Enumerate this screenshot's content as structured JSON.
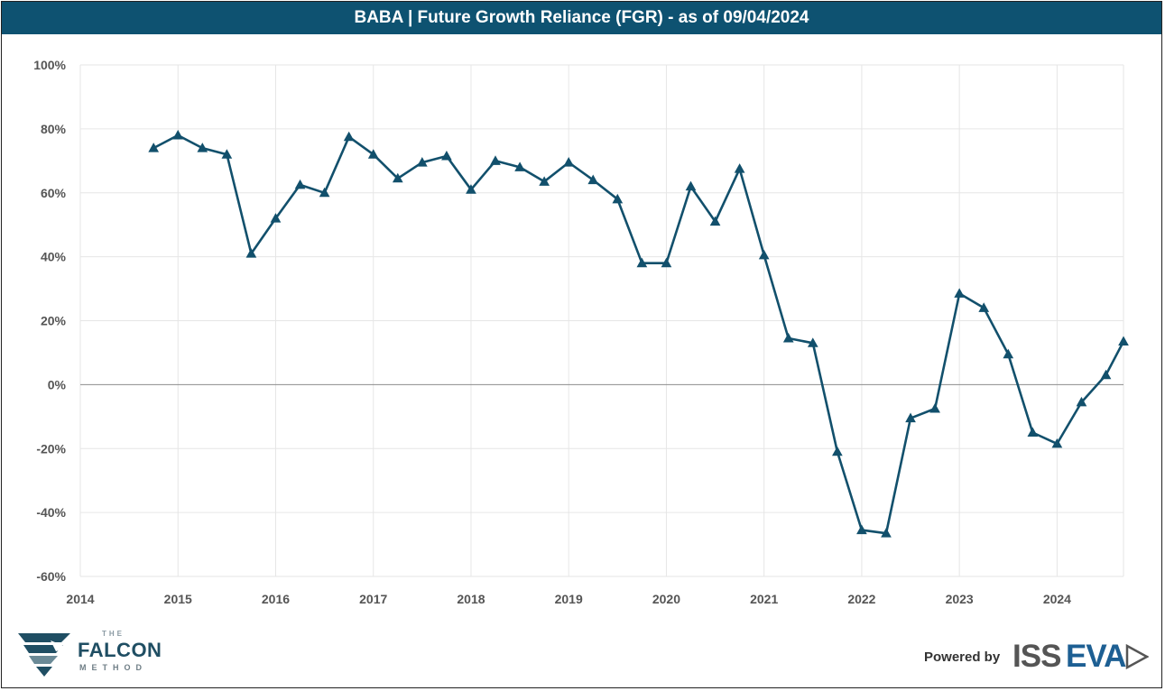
{
  "title": "BABA | Future Growth Reliance (FGR) - as of 09/04/2024",
  "chart_data": {
    "type": "line",
    "title": "BABA | Future Growth Reliance (FGR) - as of 09/04/2024",
    "xlabel": "",
    "ylabel": "",
    "xlim": [
      2014,
      2024.68
    ],
    "ylim": [
      -60,
      100
    ],
    "y_ticks": [
      100,
      80,
      60,
      40,
      20,
      0,
      -20,
      -40,
      -60
    ],
    "y_tick_labels": [
      "100%",
      "80%",
      "60%",
      "40%",
      "20%",
      "0%",
      "-20%",
      "-40%",
      "-60%"
    ],
    "x_ticks": [
      2014,
      2015,
      2016,
      2017,
      2018,
      2019,
      2020,
      2021,
      2022,
      2023,
      2024
    ],
    "x_tick_labels": [
      "2014",
      "2015",
      "2016",
      "2017",
      "2018",
      "2019",
      "2020",
      "2021",
      "2022",
      "2023",
      "2024"
    ],
    "grid": true,
    "series": [
      {
        "name": "FGR",
        "color": "#12506c",
        "marker": "triangle",
        "x": [
          2014.75,
          2015.0,
          2015.25,
          2015.5,
          2015.75,
          2016.0,
          2016.25,
          2016.5,
          2016.75,
          2017.0,
          2017.25,
          2017.5,
          2017.75,
          2018.0,
          2018.25,
          2018.5,
          2018.75,
          2019.0,
          2019.25,
          2019.5,
          2019.75,
          2020.0,
          2020.25,
          2020.5,
          2020.75,
          2021.0,
          2021.25,
          2021.5,
          2021.75,
          2022.0,
          2022.25,
          2022.5,
          2022.75,
          2023.0,
          2023.25,
          2023.5,
          2023.75,
          2024.0,
          2024.25,
          2024.5,
          2024.68
        ],
        "values": [
          74,
          78,
          74,
          72,
          41,
          52,
          62.5,
          60,
          77.5,
          72,
          64.5,
          69.5,
          71.5,
          61,
          70,
          68,
          63.5,
          69.5,
          64,
          58,
          38,
          38,
          62,
          51,
          67.5,
          40.5,
          14.5,
          13,
          -21,
          -45.5,
          -46.5,
          -10.5,
          -7.5,
          28.5,
          24,
          9.5,
          -15,
          -18.5,
          -5.5,
          3,
          13.5
        ]
      }
    ]
  },
  "branding": {
    "falcon_top": "THE",
    "falcon_name": "FALCON",
    "falcon_sub": "METHOD",
    "powered_by": "Powered by",
    "iss": "ISS",
    "eva": "EVA"
  }
}
